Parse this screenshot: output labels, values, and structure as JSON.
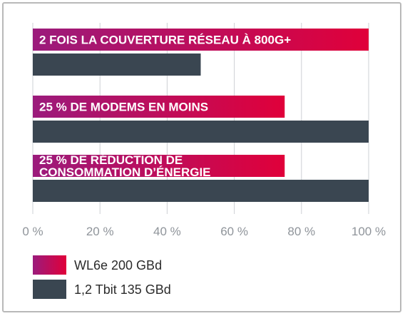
{
  "chart_data": {
    "type": "bar",
    "orientation": "horizontal",
    "categories": [
      [
        "2 FOIS LA COUVERTURE RÉSEAU À 800G+"
      ],
      [
        "25 % DE MODEMS EN MOINS"
      ],
      [
        "25 % DE RÉDUCTION DE",
        "CONSOMMATION D’ÉNERGIE"
      ]
    ],
    "series": [
      {
        "name": "WL6e 200 GBd",
        "values": [
          100,
          75,
          75
        ]
      },
      {
        "name": "1,2 Tbit 135 GBd",
        "values": [
          50,
          100,
          100
        ]
      }
    ],
    "xlim": [
      0,
      100
    ],
    "xticks": [
      "0 %",
      "20 %",
      "40 %",
      "60 %",
      "80 %",
      "100 %"
    ],
    "grid": true,
    "legend_position": "bottom-left",
    "colors": {
      "series0_gradient": [
        "#9b1b7c",
        "#e0003a"
      ],
      "series1": "#3a4651",
      "grid": "#cdd0d4",
      "tick_text": "#8f949a"
    }
  }
}
